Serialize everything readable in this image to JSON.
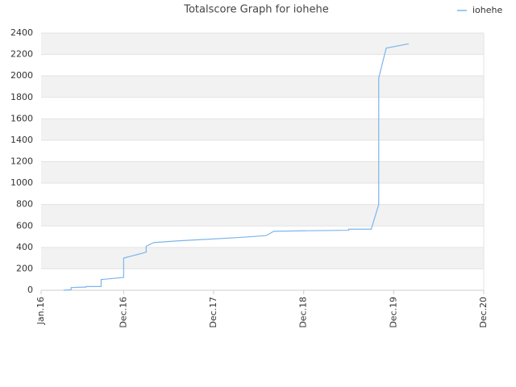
{
  "chart_data": {
    "type": "line",
    "title": "Totalscore Graph for iohehe",
    "x": [
      "2016-04",
      "2016-05",
      "2016-05",
      "2016-07",
      "2016-07",
      "2016-09",
      "2016-09",
      "2016-12",
      "2016-12",
      "2017-03",
      "2017-03",
      "2017-04",
      "2017-07",
      "2017-11",
      "2018-04",
      "2018-07",
      "2018-08",
      "2018-12",
      "2019-06",
      "2019-06",
      "2019-09",
      "2019-10",
      "2019-10",
      "2019-10",
      "2019-11",
      "2020-02"
    ],
    "series": [
      {
        "name": "iohehe",
        "color": "#7cb5ec",
        "values": [
          0,
          5,
          25,
          30,
          35,
          35,
          100,
          120,
          300,
          355,
          410,
          445,
          460,
          475,
          495,
          510,
          550,
          555,
          560,
          570,
          570,
          800,
          1000,
          1980,
          2260,
          2300
        ]
      }
    ],
    "xlim": [
      "2016-01",
      "2020-12"
    ],
    "xticks": [
      {
        "value": "2016-01",
        "label": "Jan.16"
      },
      {
        "value": "2016-12",
        "label": "Dec.16"
      },
      {
        "value": "2017-12",
        "label": "Dec.17"
      },
      {
        "value": "2018-12",
        "label": "Dec.18"
      },
      {
        "value": "2019-12",
        "label": "Dec.19"
      },
      {
        "value": "2020-12",
        "label": "Dec.20"
      }
    ],
    "ylim": [
      0,
      2400
    ],
    "yticks": [
      0,
      200,
      400,
      600,
      800,
      1000,
      1200,
      1400,
      1600,
      1800,
      2000,
      2200,
      2400
    ],
    "grid": true,
    "legend": "top-right"
  }
}
